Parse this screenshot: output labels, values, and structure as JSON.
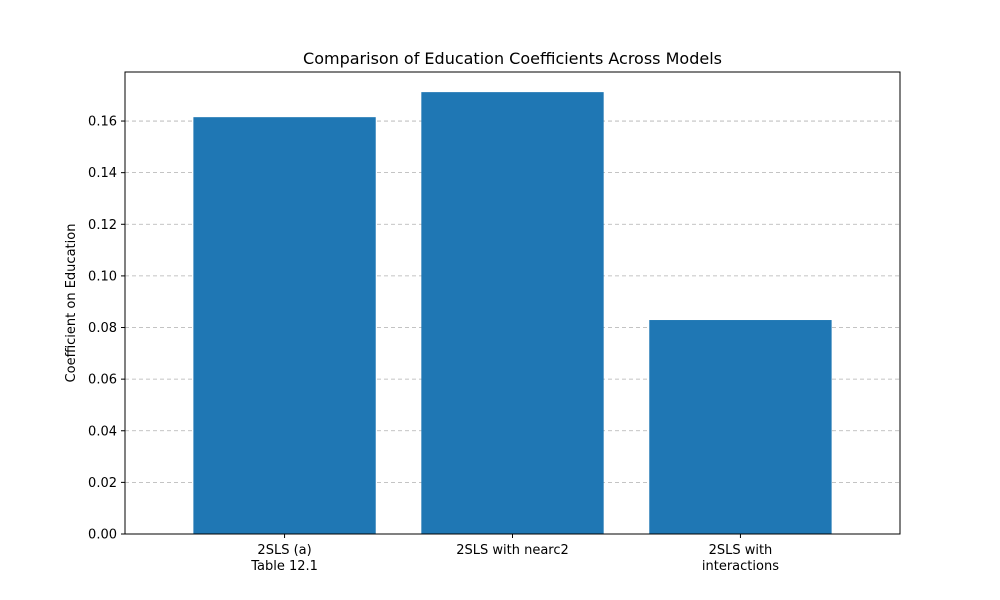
{
  "chart_data": {
    "type": "bar",
    "title": "Comparison of Education Coefficients Across Models",
    "xlabel": "",
    "ylabel": "Coefficient on Education",
    "categories": [
      [
        "2SLS (a)",
        "Table 12.1"
      ],
      [
        "2SLS with nearc2"
      ],
      [
        "2SLS with",
        "interactions"
      ]
    ],
    "values": [
      0.1615,
      0.1712,
      0.0829
    ],
    "ylim": [
      0,
      0.179
    ],
    "yticks": [
      0.0,
      0.02,
      0.04,
      0.06,
      0.08,
      0.1,
      0.12,
      0.14,
      0.16
    ],
    "ytick_labels": [
      "0.00",
      "0.02",
      "0.04",
      "0.06",
      "0.08",
      "0.10",
      "0.12",
      "0.14",
      "0.16"
    ],
    "grid": "y-dashed",
    "bar_color": "#1f77b4"
  }
}
